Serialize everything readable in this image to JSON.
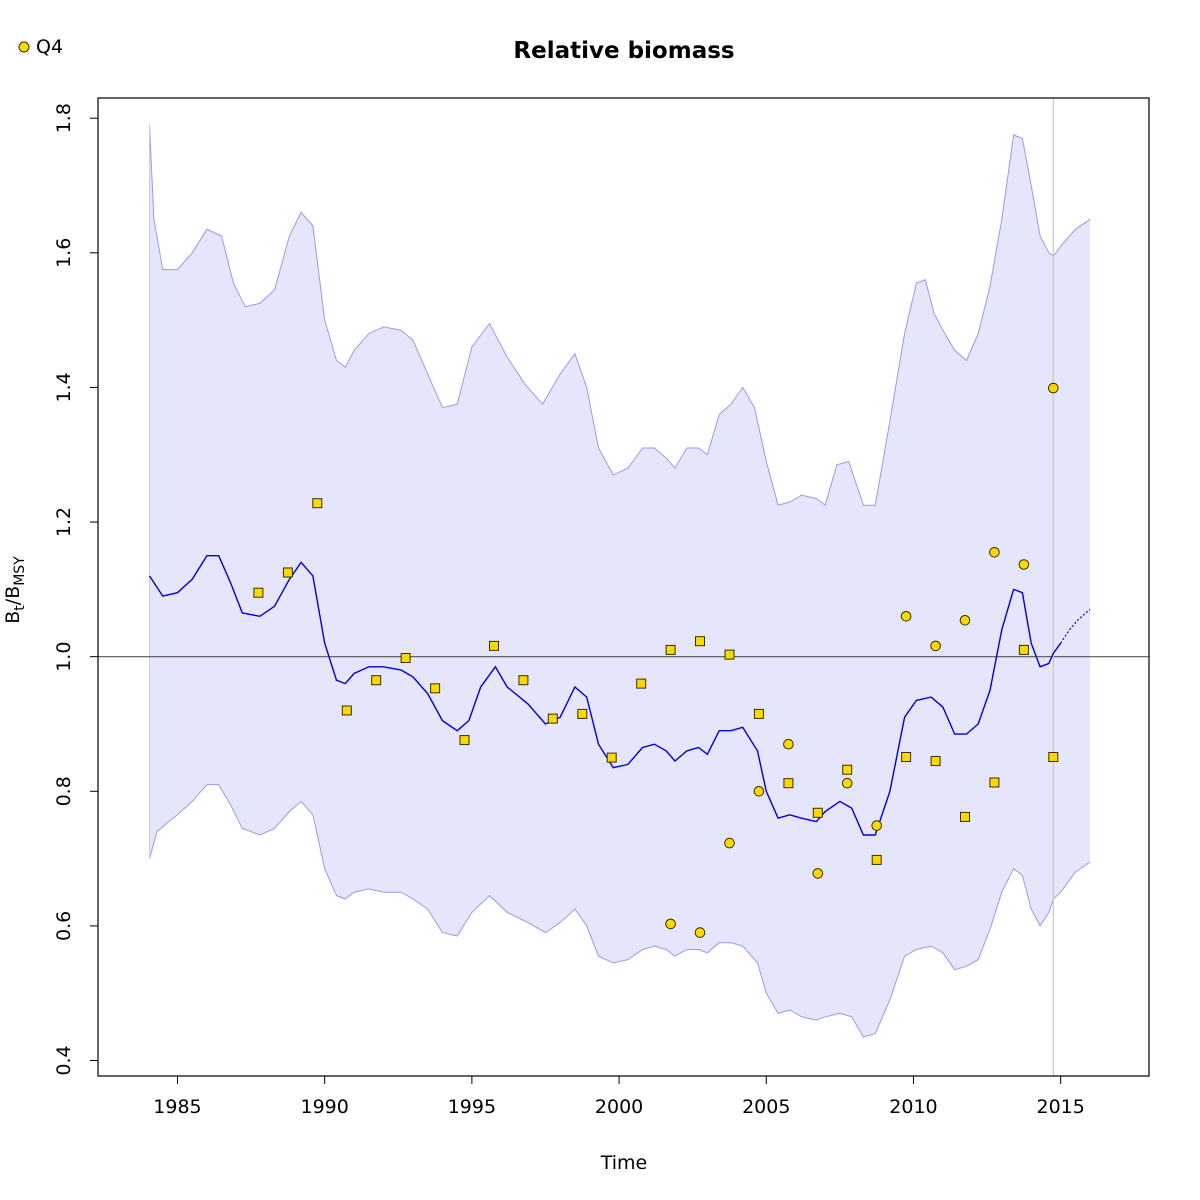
{
  "chart_data": {
    "type": "line",
    "title": "Relative biomass",
    "xlabel": "Time",
    "ylabel_main": "B",
    "ylabel_sub1": "t",
    "ylabel_sep": "/B",
    "ylabel_sub2": "MSY",
    "xlim": [
      1982.3,
      2018.0
    ],
    "ylim": [
      0.377,
      1.83
    ],
    "x_ticks": [
      1985,
      1990,
      1995,
      2000,
      2005,
      2010,
      2015
    ],
    "x_tick_labels": [
      "1985",
      "1990",
      "1995",
      "2000",
      "2005",
      "2010",
      "2015"
    ],
    "y_ticks": [
      0.4,
      0.6,
      0.8,
      1.0,
      1.2,
      1.4,
      1.6,
      1.8
    ],
    "y_tick_labels": [
      "0.4",
      "0.6",
      "0.8",
      "1.0",
      "1.2",
      "1.4",
      "1.6",
      "1.8"
    ],
    "reference_line_y": 1.0,
    "vertical_line_x": 2014.75,
    "legend": [
      {
        "label": "Q4",
        "marker": "circle"
      }
    ],
    "colors": {
      "band_fill": "#e5e5fc",
      "band_edge": "#9999ee",
      "median_line": "#0000dd",
      "marker_fill": "#ffd700",
      "marker_edge": "#333300",
      "ref_line": "#555555",
      "vline": "#c8c8c8"
    },
    "series": [
      {
        "role": "median",
        "points": [
          [
            1984.05,
            1.12
          ],
          [
            1984.5,
            1.09
          ],
          [
            1985,
            1.095
          ],
          [
            1985.5,
            1.115
          ],
          [
            1986,
            1.15
          ],
          [
            1986.4,
            1.15
          ],
          [
            1986.8,
            1.11
          ],
          [
            1987.2,
            1.065
          ],
          [
            1987.8,
            1.06
          ],
          [
            1988.3,
            1.075
          ],
          [
            1988.8,
            1.115
          ],
          [
            1989.2,
            1.14
          ],
          [
            1989.6,
            1.12
          ],
          [
            1990,
            1.02
          ],
          [
            1990.4,
            0.965
          ],
          [
            1990.7,
            0.96
          ],
          [
            1991,
            0.975
          ],
          [
            1991.5,
            0.985
          ],
          [
            1992,
            0.985
          ],
          [
            1992.6,
            0.98
          ],
          [
            1993,
            0.97
          ],
          [
            1993.5,
            0.945
          ],
          [
            1994,
            0.905
          ],
          [
            1994.5,
            0.89
          ],
          [
            1994.9,
            0.905
          ],
          [
            1995.3,
            0.955
          ],
          [
            1995.8,
            0.985
          ],
          [
            1996.2,
            0.955
          ],
          [
            1996.9,
            0.93
          ],
          [
            1997.5,
            0.9
          ],
          [
            1998,
            0.91
          ],
          [
            1998.5,
            0.955
          ],
          [
            1998.9,
            0.94
          ],
          [
            1999.3,
            0.87
          ],
          [
            1999.8,
            0.835
          ],
          [
            2000.3,
            0.84
          ],
          [
            2000.8,
            0.865
          ],
          [
            2001.2,
            0.87
          ],
          [
            2001.6,
            0.86
          ],
          [
            2001.9,
            0.845
          ],
          [
            2002.3,
            0.86
          ],
          [
            2002.7,
            0.865
          ],
          [
            2003.0,
            0.855
          ],
          [
            2003.4,
            0.89
          ],
          [
            2003.8,
            0.89
          ],
          [
            2004.2,
            0.895
          ],
          [
            2004.7,
            0.86
          ],
          [
            2005.0,
            0.8
          ],
          [
            2005.4,
            0.76
          ],
          [
            2005.8,
            0.765
          ],
          [
            2006.2,
            0.76
          ],
          [
            2006.7,
            0.755
          ],
          [
            2007.0,
            0.77
          ],
          [
            2007.5,
            0.785
          ],
          [
            2007.9,
            0.775
          ],
          [
            2008.3,
            0.735
          ],
          [
            2008.7,
            0.735
          ],
          [
            2009.2,
            0.8
          ],
          [
            2009.7,
            0.91
          ],
          [
            2010.1,
            0.935
          ],
          [
            2010.6,
            0.94
          ],
          [
            2011.0,
            0.925
          ],
          [
            2011.4,
            0.885
          ],
          [
            2011.8,
            0.885
          ],
          [
            2012.2,
            0.9
          ],
          [
            2012.6,
            0.95
          ],
          [
            2013.0,
            1.04
          ],
          [
            2013.4,
            1.1
          ],
          [
            2013.7,
            1.095
          ],
          [
            2014.0,
            1.02
          ],
          [
            2014.3,
            0.985
          ],
          [
            2014.6,
            0.99
          ],
          [
            2014.75,
            1.005
          ],
          [
            2015.0,
            1.02
          ]
        ]
      },
      {
        "role": "projection",
        "points": [
          [
            2015.0,
            1.02
          ],
          [
            2015.3,
            1.04
          ],
          [
            2015.6,
            1.055
          ],
          [
            2015.85,
            1.065
          ],
          [
            2016.0,
            1.07
          ]
        ]
      },
      {
        "role": "upper_ci",
        "points": [
          [
            1984.05,
            1.79
          ],
          [
            1984.2,
            1.65
          ],
          [
            1984.5,
            1.575
          ],
          [
            1985,
            1.575
          ],
          [
            1985.5,
            1.6
          ],
          [
            1986,
            1.635
          ],
          [
            1986.5,
            1.625
          ],
          [
            1986.9,
            1.555
          ],
          [
            1987.3,
            1.52
          ],
          [
            1987.8,
            1.525
          ],
          [
            1988.3,
            1.545
          ],
          [
            1988.8,
            1.625
          ],
          [
            1989.2,
            1.66
          ],
          [
            1989.6,
            1.64
          ],
          [
            1990,
            1.5
          ],
          [
            1990.4,
            1.44
          ],
          [
            1990.7,
            1.43
          ],
          [
            1991,
            1.455
          ],
          [
            1991.5,
            1.48
          ],
          [
            1992,
            1.49
          ],
          [
            1992.6,
            1.485
          ],
          [
            1993,
            1.47
          ],
          [
            1993.5,
            1.42
          ],
          [
            1994,
            1.37
          ],
          [
            1994.5,
            1.375
          ],
          [
            1995,
            1.46
          ],
          [
            1995.6,
            1.495
          ],
          [
            1996.2,
            1.445
          ],
          [
            1996.8,
            1.405
          ],
          [
            1997.4,
            1.375
          ],
          [
            1998.0,
            1.42
          ],
          [
            1998.5,
            1.45
          ],
          [
            1998.9,
            1.4
          ],
          [
            1999.3,
            1.31
          ],
          [
            1999.8,
            1.27
          ],
          [
            2000.3,
            1.28
          ],
          [
            2000.8,
            1.31
          ],
          [
            2001.2,
            1.31
          ],
          [
            2001.6,
            1.295
          ],
          [
            2001.9,
            1.28
          ],
          [
            2002.3,
            1.31
          ],
          [
            2002.7,
            1.31
          ],
          [
            2003.0,
            1.3
          ],
          [
            2003.4,
            1.36
          ],
          [
            2003.8,
            1.375
          ],
          [
            2004.2,
            1.4
          ],
          [
            2004.6,
            1.37
          ],
          [
            2005.0,
            1.29
          ],
          [
            2005.4,
            1.225
          ],
          [
            2005.8,
            1.23
          ],
          [
            2006.2,
            1.24
          ],
          [
            2006.7,
            1.235
          ],
          [
            2007.0,
            1.225
          ],
          [
            2007.4,
            1.285
          ],
          [
            2007.8,
            1.29
          ],
          [
            2008.3,
            1.225
          ],
          [
            2008.7,
            1.225
          ],
          [
            2009.2,
            1.35
          ],
          [
            2009.7,
            1.48
          ],
          [
            2010.1,
            1.555
          ],
          [
            2010.4,
            1.56
          ],
          [
            2010.7,
            1.51
          ],
          [
            2011.0,
            1.485
          ],
          [
            2011.4,
            1.455
          ],
          [
            2011.8,
            1.44
          ],
          [
            2012.2,
            1.48
          ],
          [
            2012.6,
            1.55
          ],
          [
            2013.0,
            1.65
          ],
          [
            2013.4,
            1.775
          ],
          [
            2013.7,
            1.77
          ],
          [
            2014.0,
            1.7
          ],
          [
            2014.3,
            1.625
          ],
          [
            2014.6,
            1.6
          ],
          [
            2014.75,
            1.595
          ],
          [
            2015.0,
            1.61
          ],
          [
            2015.5,
            1.635
          ],
          [
            2016.0,
            1.65
          ]
        ]
      },
      {
        "role": "lower_ci",
        "points": [
          [
            1984.05,
            0.7
          ],
          [
            1984.3,
            0.74
          ],
          [
            1984.7,
            0.755
          ],
          [
            1985,
            0.765
          ],
          [
            1985.5,
            0.785
          ],
          [
            1986,
            0.81
          ],
          [
            1986.4,
            0.81
          ],
          [
            1986.8,
            0.78
          ],
          [
            1987.2,
            0.745
          ],
          [
            1987.8,
            0.735
          ],
          [
            1988.3,
            0.745
          ],
          [
            1988.8,
            0.77
          ],
          [
            1989.2,
            0.785
          ],
          [
            1989.6,
            0.765
          ],
          [
            1990,
            0.685
          ],
          [
            1990.4,
            0.645
          ],
          [
            1990.7,
            0.64
          ],
          [
            1991,
            0.65
          ],
          [
            1991.5,
            0.655
          ],
          [
            1992,
            0.65
          ],
          [
            1992.6,
            0.65
          ],
          [
            1993,
            0.64
          ],
          [
            1993.5,
            0.625
          ],
          [
            1994,
            0.59
          ],
          [
            1994.5,
            0.585
          ],
          [
            1995,
            0.62
          ],
          [
            1995.6,
            0.645
          ],
          [
            1996.2,
            0.62
          ],
          [
            1996.9,
            0.605
          ],
          [
            1997.5,
            0.59
          ],
          [
            1998.0,
            0.605
          ],
          [
            1998.5,
            0.625
          ],
          [
            1998.9,
            0.6
          ],
          [
            1999.3,
            0.555
          ],
          [
            1999.8,
            0.545
          ],
          [
            2000.3,
            0.55
          ],
          [
            2000.8,
            0.565
          ],
          [
            2001.2,
            0.57
          ],
          [
            2001.6,
            0.565
          ],
          [
            2001.9,
            0.555
          ],
          [
            2002.3,
            0.565
          ],
          [
            2002.7,
            0.565
          ],
          [
            2003.0,
            0.56
          ],
          [
            2003.4,
            0.575
          ],
          [
            2003.8,
            0.575
          ],
          [
            2004.2,
            0.57
          ],
          [
            2004.7,
            0.545
          ],
          [
            2005.0,
            0.5
          ],
          [
            2005.4,
            0.47
          ],
          [
            2005.8,
            0.475
          ],
          [
            2006.2,
            0.465
          ],
          [
            2006.7,
            0.46
          ],
          [
            2007.0,
            0.465
          ],
          [
            2007.5,
            0.47
          ],
          [
            2007.9,
            0.465
          ],
          [
            2008.3,
            0.435
          ],
          [
            2008.7,
            0.44
          ],
          [
            2009.2,
            0.49
          ],
          [
            2009.7,
            0.555
          ],
          [
            2010.1,
            0.565
          ],
          [
            2010.6,
            0.57
          ],
          [
            2011.0,
            0.56
          ],
          [
            2011.4,
            0.535
          ],
          [
            2011.8,
            0.54
          ],
          [
            2012.2,
            0.55
          ],
          [
            2012.6,
            0.595
          ],
          [
            2013.0,
            0.65
          ],
          [
            2013.4,
            0.685
          ],
          [
            2013.7,
            0.675
          ],
          [
            2014.0,
            0.625
          ],
          [
            2014.3,
            0.6
          ],
          [
            2014.6,
            0.62
          ],
          [
            2014.75,
            0.64
          ],
          [
            2015.0,
            0.65
          ],
          [
            2015.5,
            0.68
          ],
          [
            2016.0,
            0.695
          ]
        ]
      },
      {
        "role": "index_squares",
        "points": [
          [
            1987.75,
            1.095
          ],
          [
            1988.75,
            1.125
          ],
          [
            1989.75,
            1.228
          ],
          [
            1990.75,
            0.92
          ],
          [
            1991.75,
            0.965
          ],
          [
            1992.75,
            0.998
          ],
          [
            1993.75,
            0.953
          ],
          [
            1994.75,
            0.876
          ],
          [
            1995.75,
            1.016
          ],
          [
            1996.75,
            0.965
          ],
          [
            1997.75,
            0.908
          ],
          [
            1998.75,
            0.915
          ],
          [
            1999.75,
            0.85
          ],
          [
            2000.75,
            0.96
          ],
          [
            2001.75,
            1.01
          ],
          [
            2002.75,
            1.023
          ],
          [
            2003.75,
            1.003
          ],
          [
            2004.75,
            0.915
          ],
          [
            2005.75,
            0.812
          ],
          [
            2006.75,
            0.768
          ],
          [
            2007.75,
            0.832
          ],
          [
            2008.75,
            0.698
          ],
          [
            2009.75,
            0.851
          ],
          [
            2010.75,
            0.845
          ],
          [
            2011.75,
            0.762
          ],
          [
            2012.75,
            0.813
          ],
          [
            2013.75,
            1.01
          ],
          [
            2014.75,
            0.851
          ]
        ]
      },
      {
        "role": "index_circles",
        "name": "Q4",
        "points": [
          [
            2001.75,
            0.603
          ],
          [
            2002.75,
            0.59
          ],
          [
            2003.75,
            0.723
          ],
          [
            2004.75,
            0.8
          ],
          [
            2005.75,
            0.87
          ],
          [
            2006.75,
            0.678
          ],
          [
            2007.75,
            0.812
          ],
          [
            2008.75,
            0.749
          ],
          [
            2009.75,
            1.06
          ],
          [
            2010.75,
            1.016
          ],
          [
            2011.75,
            1.054
          ],
          [
            2012.75,
            1.155
          ],
          [
            2013.75,
            1.137
          ],
          [
            2014.75,
            1.399
          ]
        ]
      }
    ]
  }
}
